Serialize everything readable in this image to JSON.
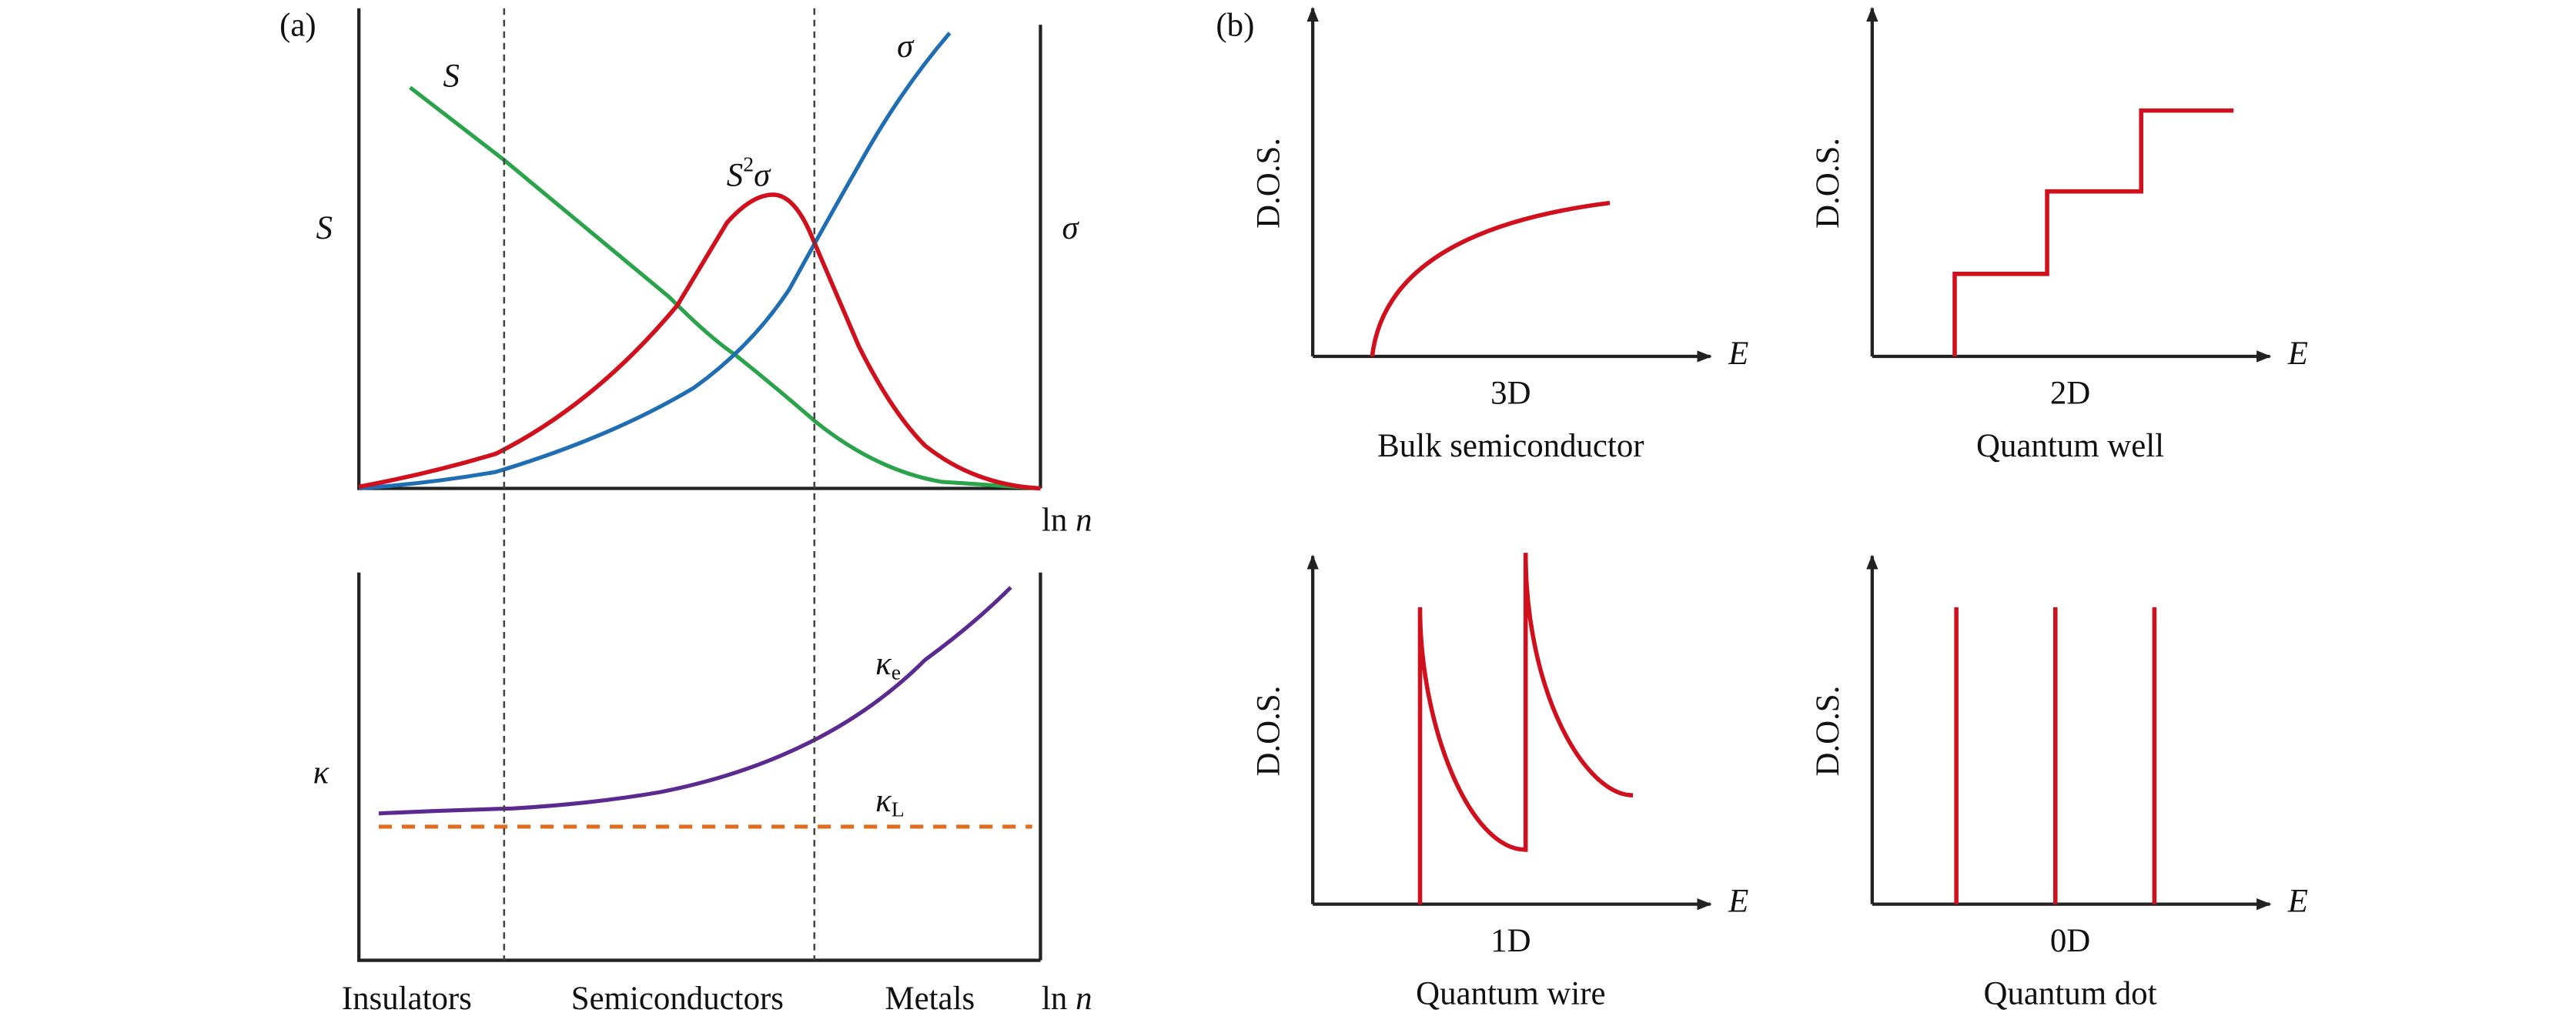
{
  "panel_a": {
    "label": "(a)",
    "top": {
      "left_axis": "S",
      "right_axis": "σ",
      "x_axis": {
        "base": "ln",
        "var": "n"
      },
      "curve_s": "S",
      "curve_sigma": "σ",
      "curve_power_factor": {
        "base": "S",
        "sup": "2",
        "rest": "σ"
      }
    },
    "bottom": {
      "y_axis": "κ",
      "kappa_e": {
        "symbol": "κ",
        "subscript": "e"
      },
      "kappa_l": {
        "symbol": "κ",
        "subscript": "L"
      },
      "x_axis": {
        "base": "ln",
        "var": "n"
      }
    },
    "regions": [
      "Insulators",
      "Semiconductors",
      "Metals"
    ]
  },
  "panel_b": {
    "label": "(b)",
    "panels": [
      {
        "y_label": "D.O.S.",
        "x_label": "E",
        "dimension": "3D",
        "name": "Bulk semiconductor"
      },
      {
        "y_label": "D.O.S.",
        "x_label": "E",
        "dimension": "2D",
        "name": "Quantum well"
      },
      {
        "y_label": "D.O.S.",
        "x_label": "E",
        "dimension": "1D",
        "name": "Quantum wire"
      },
      {
        "y_label": "D.O.S.",
        "x_label": "E",
        "dimension": "0D",
        "name": "Quantum dot"
      }
    ]
  }
}
